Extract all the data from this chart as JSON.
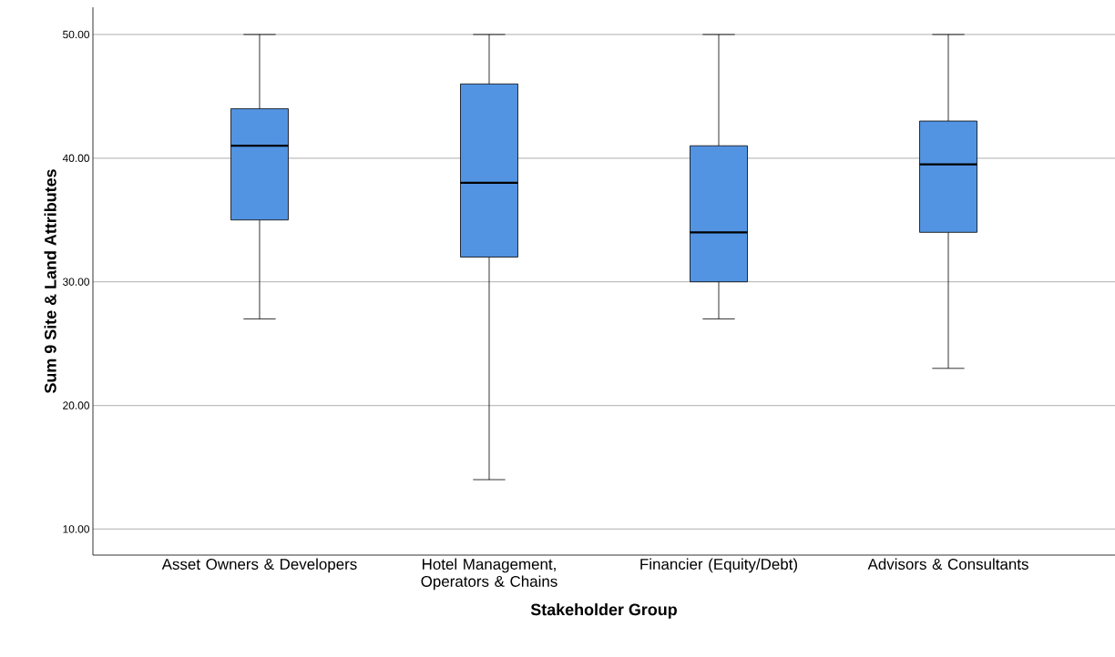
{
  "chart_data": {
    "type": "box",
    "xlabel": "Stakeholder Group",
    "ylabel": "Sum 9 Site & Land Attributes",
    "categories": [
      "Asset Owners & Developers",
      "Hotel Management, Operators & Chains",
      "Financier (Equity/Debt)",
      "Advisors & Consultants"
    ],
    "boxes": [
      {
        "low": 27,
        "q1": 35,
        "median": 41,
        "q3": 44,
        "high": 50
      },
      {
        "low": 14,
        "q1": 32,
        "median": 38,
        "q3": 46,
        "high": 50
      },
      {
        "low": 27,
        "q1": 30,
        "median": 34,
        "q3": 41,
        "high": 50
      },
      {
        "low": 23,
        "q1": 34,
        "median": 39.5,
        "q3": 43,
        "high": 50
      }
    ],
    "color": "#5294e2",
    "ylim": [
      7.9,
      52.2
    ],
    "yticks": [
      {
        "value": 10,
        "label": "10.00"
      },
      {
        "value": 20,
        "label": "20.00"
      },
      {
        "value": 30,
        "label": "30.00"
      },
      {
        "value": 40,
        "label": "40.00"
      },
      {
        "value": 50,
        "label": "50.00"
      }
    ],
    "grid": "y"
  }
}
